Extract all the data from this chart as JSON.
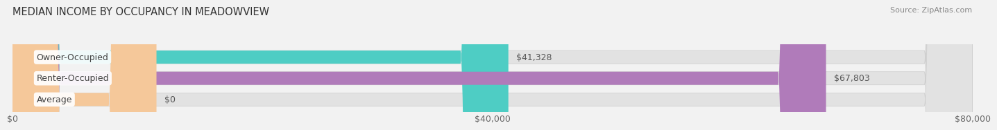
{
  "title": "MEDIAN INCOME BY OCCUPANCY IN MEADOWVIEW",
  "source": "Source: ZipAtlas.com",
  "categories": [
    "Owner-Occupied",
    "Renter-Occupied",
    "Average"
  ],
  "values": [
    41328,
    67803,
    0
  ],
  "avg_bar_display": 12000,
  "bar_colors": [
    "#4ecdc4",
    "#b07bba",
    "#f5c89a"
  ],
  "bar_labels": [
    "$41,328",
    "$67,803",
    "$0"
  ],
  "xlim": [
    0,
    80000
  ],
  "xticks": [
    0,
    40000,
    80000
  ],
  "xtick_labels": [
    "$0",
    "$40,000",
    "$80,000"
  ],
  "background_color": "#f2f2f2",
  "bar_bg_color": "#e2e2e2",
  "title_fontsize": 10.5,
  "source_fontsize": 8,
  "label_fontsize": 9,
  "tick_fontsize": 9,
  "value_label_color": "#555555",
  "cat_label_color": "#444444"
}
